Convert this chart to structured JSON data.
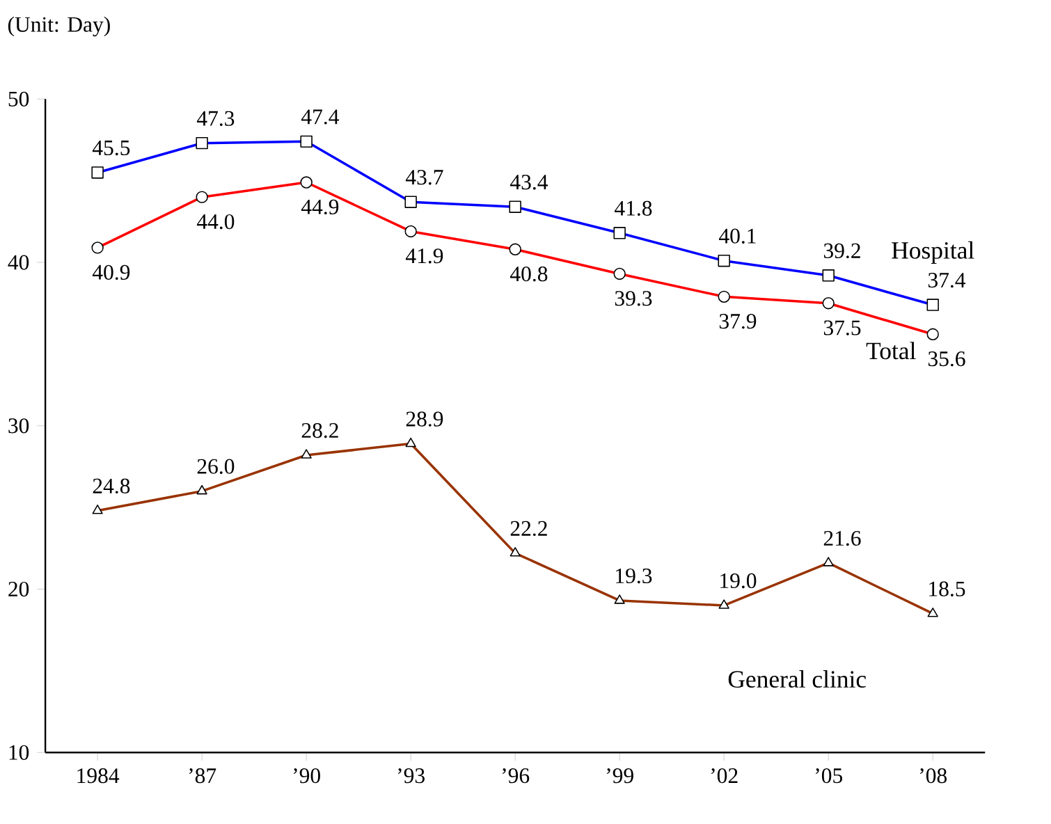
{
  "chart_data": {
    "type": "line",
    "ylabel": "(Unit: Day)",
    "categories": [
      "1984",
      "’87",
      "’90",
      "’93",
      "’96",
      "’99",
      "’02",
      "’05",
      "’08"
    ],
    "ylim": [
      10,
      50
    ],
    "yticks": [
      10,
      20,
      30,
      40,
      50
    ],
    "legend": false,
    "grid": false,
    "series": [
      {
        "name": "Hospital",
        "color": "#0000ff",
        "marker": "square",
        "values": [
          45.5,
          47.3,
          47.4,
          43.7,
          43.4,
          41.8,
          40.1,
          39.2,
          37.4
        ],
        "value_labels": [
          "45.5",
          "47.3",
          "47.4",
          "43.7",
          "43.4",
          "41.8",
          "40.1",
          "39.2",
          "37.4"
        ]
      },
      {
        "name": "Total",
        "color": "#ff0000",
        "marker": "circle",
        "values": [
          40.9,
          44.0,
          44.9,
          41.9,
          40.8,
          39.3,
          37.9,
          37.5,
          35.6
        ],
        "value_labels": [
          "40.9",
          "44.0",
          "44.9",
          "41.9",
          "40.8",
          "39.3",
          "37.9",
          "37.5",
          "35.6"
        ]
      },
      {
        "name": "General clinic",
        "color": "#993300",
        "marker": "triangle",
        "values": [
          24.8,
          26.0,
          28.2,
          28.9,
          22.2,
          19.3,
          19.0,
          21.6,
          18.5
        ],
        "value_labels": [
          "24.8",
          "26.0",
          "28.2",
          "28.9",
          "22.2",
          "19.3",
          "19.0",
          "21.6",
          "18.5"
        ]
      }
    ]
  }
}
